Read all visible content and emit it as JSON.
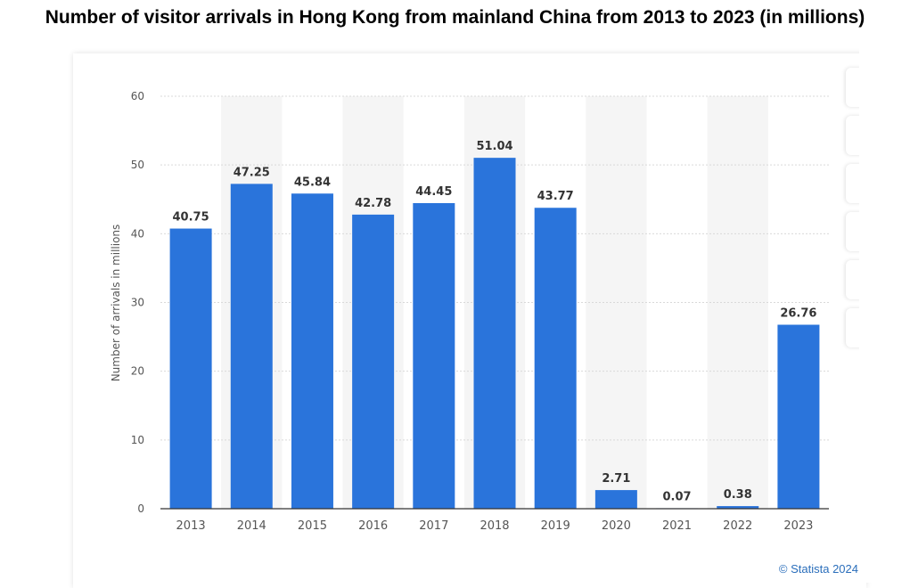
{
  "title": "Number of visitor arrivals in Hong Kong from mainland China from 2013 to 2023 (in millions)",
  "credit": "© Statista 2024",
  "colors": {
    "bar": "#2a74db",
    "band": "#f5f5f5",
    "grid": "#d9d9d9",
    "axis": "#333333",
    "tick_text": "#555555",
    "label_text": "#333333"
  },
  "chart_data": {
    "type": "bar",
    "title": "Number of visitor arrivals in Hong Kong from mainland China from 2013 to 2023 (in millions)",
    "xlabel": "",
    "ylabel": "Number of arrivals in millions",
    "categories": [
      "2013",
      "2014",
      "2015",
      "2016",
      "2017",
      "2018",
      "2019",
      "2020",
      "2021",
      "2022",
      "2023"
    ],
    "values": [
      40.75,
      47.25,
      45.84,
      42.78,
      44.45,
      51.04,
      43.77,
      2.71,
      0.07,
      0.38,
      26.76
    ],
    "value_labels": [
      "40.75",
      "47.25",
      "45.84",
      "42.78",
      "44.45",
      "51.04",
      "43.77",
      "2.71",
      "0.07",
      "0.38",
      "26.76"
    ],
    "ylim": [
      0,
      60
    ],
    "yticks": [
      "0",
      "10",
      "20",
      "30",
      "40",
      "50",
      "60"
    ],
    "grid": true,
    "legend": "none"
  }
}
